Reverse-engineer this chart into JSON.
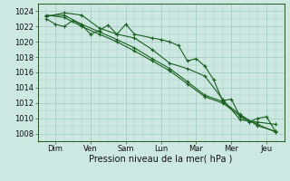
{
  "bg_color": "#cce8e0",
  "grid_color": "#a8ccc8",
  "line_color": "#1a6020",
  "xlabel": "Pression niveau de la mer( hPa )",
  "xtick_labels": [
    "Dim",
    "Ven",
    "Sam",
    "Lun",
    "Mar",
    "Mer",
    "Jeu"
  ],
  "ylim": [
    1007.0,
    1025.0
  ],
  "yticks": [
    1008,
    1010,
    1012,
    1014,
    1016,
    1018,
    1020,
    1022,
    1024
  ],
  "xlim": [
    0.0,
    14.0
  ],
  "xtick_positions": [
    1.0,
    3.0,
    5.0,
    7.0,
    9.0,
    11.0,
    13.0
  ],
  "series": [
    {
      "x": [
        0.5,
        1.0,
        1.5,
        2.0,
        2.5,
        3.0,
        3.5,
        4.0,
        4.5,
        5.0,
        5.5,
        6.5,
        7.0,
        7.5,
        8.0,
        8.5,
        9.0,
        9.5,
        10.0,
        10.5,
        11.0,
        11.5,
        12.0,
        12.5,
        13.0,
        13.5
      ],
      "y": [
        1023.0,
        1022.3,
        1022.0,
        1022.8,
        1022.2,
        1021.0,
        1021.5,
        1022.2,
        1021.0,
        1022.3,
        1021.0,
        1020.5,
        1020.3,
        1020.0,
        1019.5,
        1017.5,
        1017.8,
        1016.8,
        1015.0,
        1012.3,
        1012.5,
        1010.2,
        1009.5,
        1010.0,
        1010.2,
        1008.3
      ]
    },
    {
      "x": [
        0.5,
        1.5,
        2.5,
        3.5,
        4.5,
        5.5,
        6.5,
        7.5,
        8.5,
        9.5,
        10.5,
        11.5,
        12.5,
        13.5
      ],
      "y": [
        1023.3,
        1023.8,
        1023.5,
        1021.8,
        1021.0,
        1020.5,
        1019.0,
        1017.2,
        1016.5,
        1015.5,
        1012.5,
        1009.8,
        1009.5,
        1009.2
      ]
    },
    {
      "x": [
        0.5,
        1.5,
        2.5,
        3.5,
        4.5,
        5.5,
        6.5,
        7.5,
        8.5,
        9.5,
        10.5,
        11.5,
        12.5,
        13.5
      ],
      "y": [
        1023.4,
        1023.5,
        1022.3,
        1021.3,
        1020.3,
        1019.2,
        1017.8,
        1016.5,
        1014.8,
        1013.0,
        1012.2,
        1010.5,
        1009.0,
        1008.3
      ]
    },
    {
      "x": [
        0.5,
        1.5,
        2.5,
        3.5,
        4.5,
        5.5,
        6.5,
        7.5,
        8.5,
        9.5,
        10.5,
        11.5,
        12.5,
        13.5
      ],
      "y": [
        1023.5,
        1023.2,
        1022.0,
        1021.0,
        1020.0,
        1018.8,
        1017.5,
        1016.2,
        1014.5,
        1012.8,
        1012.0,
        1010.3,
        1009.2,
        1008.2
      ]
    }
  ]
}
